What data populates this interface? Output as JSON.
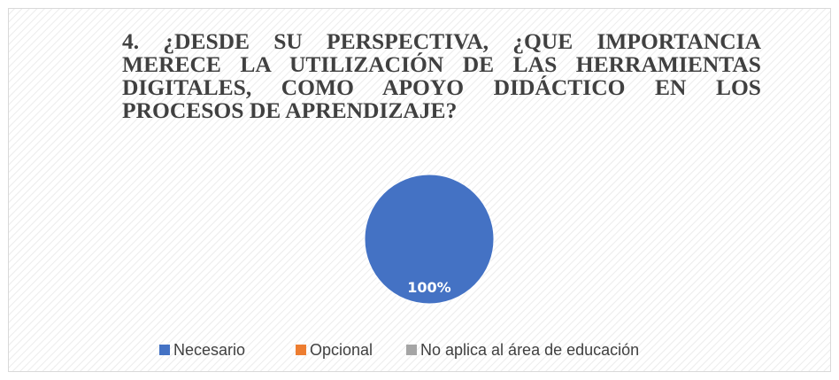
{
  "chart_data": {
    "type": "pie",
    "title": "4. ¿DESDE SU PERSPECTIVA, ¿QUE IMPORTANCIA MERECE LA UTILIZACIÓN DE LAS HERRAMIENTAS DIGITALES, COMO APOYO DIDÁCTICO EN LOS PROCESOS DE APRENDIZAJE?",
    "categories": [
      "Necesario",
      "Opcional",
      "No aplica al área de educación"
    ],
    "values": [
      100,
      0,
      0
    ],
    "value_labels": [
      "100%",
      null,
      null
    ],
    "colors": [
      "#4472c4",
      "#ed7d31",
      "#a5a5a5"
    ],
    "legend": "bottom"
  }
}
